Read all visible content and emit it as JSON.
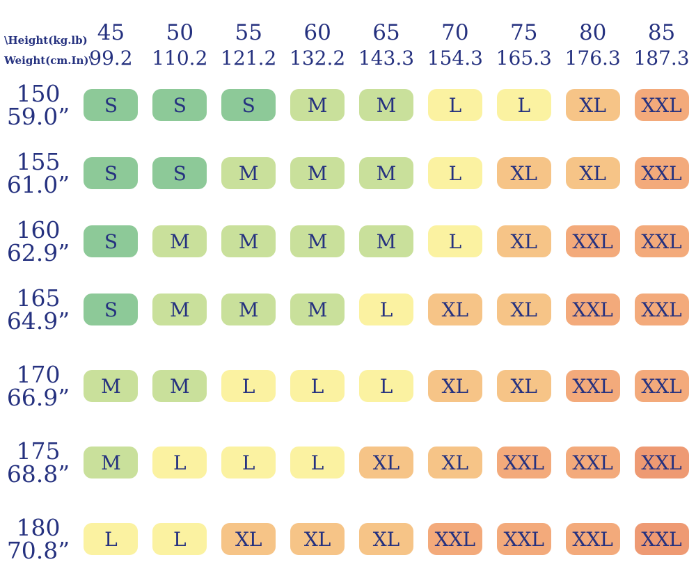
{
  "chart_data": {
    "type": "heatmap",
    "corner_line1": "\\Height(kg.lb)",
    "corner_line2": "Weight(cm.In)\\",
    "columns": [
      {
        "kg": "45",
        "lb": "99.2"
      },
      {
        "kg": "50",
        "lb": "110.2"
      },
      {
        "kg": "55",
        "lb": "121.2"
      },
      {
        "kg": "60",
        "lb": "132.2"
      },
      {
        "kg": "65",
        "lb": "143.3"
      },
      {
        "kg": "70",
        "lb": "154.3"
      },
      {
        "kg": "75",
        "lb": "165.3"
      },
      {
        "kg": "80",
        "lb": "176.3"
      },
      {
        "kg": "85",
        "lb": "187.3"
      }
    ],
    "rows": [
      {
        "cm": "150",
        "inch": "59.0”",
        "sizes": [
          "S",
          "S",
          "S",
          "M",
          "M",
          "L",
          "L",
          "XL",
          "XXL"
        ]
      },
      {
        "cm": "155",
        "inch": "61.0”",
        "sizes": [
          "S",
          "S",
          "M",
          "M",
          "M",
          "L",
          "XL",
          "XL",
          "XXL"
        ]
      },
      {
        "cm": "160",
        "inch": "62.9”",
        "sizes": [
          "S",
          "M",
          "M",
          "M",
          "M",
          "L",
          "XL",
          "XXL",
          "XXL"
        ]
      },
      {
        "cm": "165",
        "inch": "64.9”",
        "sizes": [
          "S",
          "M",
          "M",
          "M",
          "L",
          "XL",
          "XL",
          "XXL",
          "XXL"
        ]
      },
      {
        "cm": "170",
        "inch": "66.9”",
        "sizes": [
          "M",
          "M",
          "L",
          "L",
          "L",
          "XL",
          "XL",
          "XXL",
          "XXL"
        ]
      },
      {
        "cm": "175",
        "inch": "68.8”",
        "sizes": [
          "M",
          "L",
          "L",
          "L",
          "XL",
          "XL",
          "XXL",
          "XXL",
          "XXL"
        ]
      },
      {
        "cm": "180",
        "inch": "70.8”",
        "sizes": [
          "L",
          "L",
          "XL",
          "XL",
          "XL",
          "XXL",
          "XXL",
          "XXL",
          "XXL"
        ]
      }
    ],
    "size_colors": {
      "S": "#8dc998",
      "M": "#c9e09b",
      "L": "#fbf2a1",
      "XL": "#f6c487",
      "XXL": "#f3aa7b"
    },
    "deep_xxl_color": "#ee9a73",
    "deep_xxl_cells": [
      [
        5,
        8
      ],
      [
        6,
        8
      ]
    ],
    "text_color": "#25317f",
    "background": "#ffffff"
  }
}
